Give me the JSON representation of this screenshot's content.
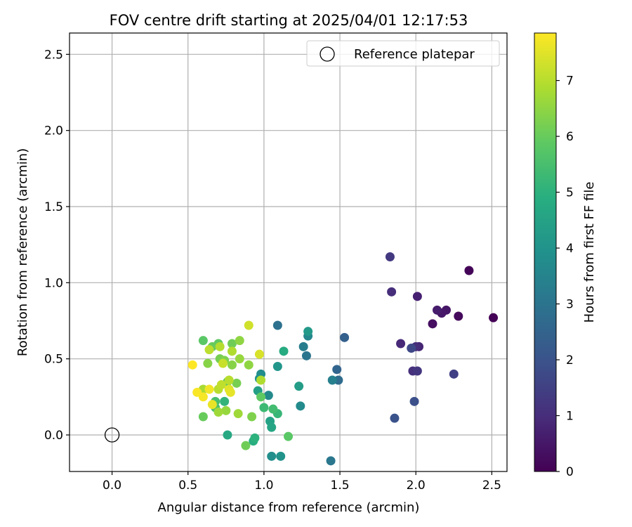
{
  "chart_data": {
    "type": "scatter",
    "title": "FOV centre drift starting at 2025/04/01 12:17:53",
    "xlabel": "Angular distance from reference (arcmin)",
    "ylabel": "Rotation from reference (arcmin)",
    "xlim": [
      -0.28,
      2.6
    ],
    "ylim": [
      -0.24,
      2.64
    ],
    "xticks": [
      0.0,
      0.5,
      1.0,
      1.5,
      2.0,
      2.5
    ],
    "xtick_labels": [
      "0.0",
      "0.5",
      "1.0",
      "1.5",
      "2.0",
      "2.5"
    ],
    "yticks": [
      0.0,
      0.5,
      1.0,
      1.5,
      2.0,
      2.5
    ],
    "ytick_labels": [
      "0.0",
      "0.5",
      "1.0",
      "1.5",
      "2.0",
      "2.5"
    ],
    "grid": true,
    "legend": {
      "placement": "top-right",
      "entries": [
        "Reference platepar"
      ]
    },
    "reference_point": {
      "x": 0.0,
      "y": 0.0,
      "marker": "open-circle"
    },
    "colorbar": {
      "label": "Hours from first FF file",
      "range": [
        0,
        7.85
      ],
      "ticks": [
        0,
        1,
        2,
        3,
        4,
        5,
        6,
        7
      ],
      "tick_labels": [
        "0",
        "1",
        "2",
        "3",
        "4",
        "5",
        "6",
        "7"
      ],
      "colormap": "viridis"
    },
    "points": [
      {
        "x": 2.51,
        "y": 0.77,
        "c": 0.05
      },
      {
        "x": 2.35,
        "y": 1.08,
        "c": 0.1
      },
      {
        "x": 2.28,
        "y": 0.78,
        "c": 0.2
      },
      {
        "x": 2.11,
        "y": 0.73,
        "c": 0.3
      },
      {
        "x": 2.2,
        "y": 0.82,
        "c": 0.45
      },
      {
        "x": 2.17,
        "y": 0.8,
        "c": 0.5
      },
      {
        "x": 2.14,
        "y": 0.82,
        "c": 0.6
      },
      {
        "x": 2.01,
        "y": 0.91,
        "c": 0.7
      },
      {
        "x": 2.02,
        "y": 0.58,
        "c": 0.8
      },
      {
        "x": 1.9,
        "y": 0.6,
        "c": 0.9
      },
      {
        "x": 2.0,
        "y": 0.58,
        "c": 1.0
      },
      {
        "x": 1.98,
        "y": 0.42,
        "c": 1.1
      },
      {
        "x": 2.01,
        "y": 0.42,
        "c": 1.2
      },
      {
        "x": 1.84,
        "y": 0.94,
        "c": 1.0
      },
      {
        "x": 1.83,
        "y": 1.17,
        "c": 1.3
      },
      {
        "x": 2.25,
        "y": 0.4,
        "c": 1.45
      },
      {
        "x": 1.97,
        "y": 0.57,
        "c": 1.7
      },
      {
        "x": 1.99,
        "y": 0.22,
        "c": 1.9
      },
      {
        "x": 1.86,
        "y": 0.11,
        "c": 2.0
      },
      {
        "x": 1.53,
        "y": 0.64,
        "c": 2.4
      },
      {
        "x": 1.48,
        "y": 0.43,
        "c": 2.55
      },
      {
        "x": 1.49,
        "y": 0.36,
        "c": 2.75
      },
      {
        "x": 1.09,
        "y": 0.72,
        "c": 2.9
      },
      {
        "x": 1.28,
        "y": 0.52,
        "c": 3.0
      },
      {
        "x": 1.44,
        "y": -0.17,
        "c": 3.1
      },
      {
        "x": 1.26,
        "y": 0.58,
        "c": 3.3
      },
      {
        "x": 1.45,
        "y": 0.36,
        "c": 3.4
      },
      {
        "x": 1.29,
        "y": 0.65,
        "c": 3.6
      },
      {
        "x": 1.03,
        "y": 0.26,
        "c": 3.7
      },
      {
        "x": 1.24,
        "y": 0.19,
        "c": 3.75
      },
      {
        "x": 0.98,
        "y": 0.4,
        "c": 3.8
      },
      {
        "x": 1.05,
        "y": -0.14,
        "c": 3.85
      },
      {
        "x": 0.97,
        "y": 0.37,
        "c": 3.9
      },
      {
        "x": 1.11,
        "y": -0.14,
        "c": 4.0
      },
      {
        "x": 1.09,
        "y": 0.45,
        "c": 4.1
      },
      {
        "x": 1.29,
        "y": 0.68,
        "c": 4.2
      },
      {
        "x": 1.23,
        "y": 0.32,
        "c": 4.3
      },
      {
        "x": 0.96,
        "y": 0.29,
        "c": 4.4
      },
      {
        "x": 1.04,
        "y": 0.09,
        "c": 4.5
      },
      {
        "x": 1.05,
        "y": 0.05,
        "c": 4.6
      },
      {
        "x": 0.76,
        "y": 0.0,
        "c": 4.7
      },
      {
        "x": 1.13,
        "y": 0.55,
        "c": 4.8
      },
      {
        "x": 0.93,
        "y": -0.04,
        "c": 4.9
      },
      {
        "x": 0.94,
        "y": -0.02,
        "c": 5.0
      },
      {
        "x": 0.74,
        "y": 0.22,
        "c": 5.1
      },
      {
        "x": 1.09,
        "y": 0.14,
        "c": 5.2
      },
      {
        "x": 1.0,
        "y": 0.18,
        "c": 5.3
      },
      {
        "x": 1.06,
        "y": 0.17,
        "c": 5.4
      },
      {
        "x": 0.68,
        "y": 0.22,
        "c": 5.5
      },
      {
        "x": 0.68,
        "y": 0.18,
        "c": 5.6
      },
      {
        "x": 0.76,
        "y": 0.35,
        "c": 5.7
      },
      {
        "x": 1.16,
        "y": -0.01,
        "c": 5.8
      },
      {
        "x": 0.98,
        "y": 0.25,
        "c": 5.9
      },
      {
        "x": 0.6,
        "y": 0.62,
        "c": 5.8
      },
      {
        "x": 0.7,
        "y": 0.6,
        "c": 5.9
      },
      {
        "x": 0.66,
        "y": 0.58,
        "c": 6.0
      },
      {
        "x": 0.6,
        "y": 0.12,
        "c": 6.0
      },
      {
        "x": 0.88,
        "y": -0.07,
        "c": 6.1
      },
      {
        "x": 0.79,
        "y": 0.6,
        "c": 6.1
      },
      {
        "x": 0.82,
        "y": 0.34,
        "c": 6.2
      },
      {
        "x": 0.71,
        "y": 0.5,
        "c": 6.2
      },
      {
        "x": 0.92,
        "y": 0.12,
        "c": 6.3
      },
      {
        "x": 0.74,
        "y": 0.49,
        "c": 6.3
      },
      {
        "x": 0.63,
        "y": 0.47,
        "c": 6.4
      },
      {
        "x": 0.79,
        "y": 0.46,
        "c": 6.4
      },
      {
        "x": 0.9,
        "y": 0.46,
        "c": 6.5
      },
      {
        "x": 0.84,
        "y": 0.62,
        "c": 6.5
      },
      {
        "x": 0.84,
        "y": 0.5,
        "c": 6.6
      },
      {
        "x": 0.75,
        "y": 0.16,
        "c": 6.6
      },
      {
        "x": 0.7,
        "y": 0.15,
        "c": 6.7
      },
      {
        "x": 0.83,
        "y": 0.14,
        "c": 6.7
      },
      {
        "x": 0.6,
        "y": 0.3,
        "c": 6.8
      },
      {
        "x": 0.98,
        "y": 0.36,
        "c": 6.9
      },
      {
        "x": 0.79,
        "y": 0.55,
        "c": 6.9
      },
      {
        "x": 0.71,
        "y": 0.58,
        "c": 6.95
      },
      {
        "x": 0.77,
        "y": 0.36,
        "c": 7.0
      },
      {
        "x": 0.7,
        "y": 0.3,
        "c": 7.0
      },
      {
        "x": 0.64,
        "y": 0.56,
        "c": 7.05
      },
      {
        "x": 0.72,
        "y": 0.33,
        "c": 7.1
      },
      {
        "x": 0.73,
        "y": 0.47,
        "c": 7.2
      },
      {
        "x": 0.9,
        "y": 0.72,
        "c": 7.3
      },
      {
        "x": 0.97,
        "y": 0.53,
        "c": 7.4
      },
      {
        "x": 0.77,
        "y": 0.3,
        "c": 7.5
      },
      {
        "x": 0.78,
        "y": 0.28,
        "c": 7.55
      },
      {
        "x": 0.66,
        "y": 0.2,
        "c": 7.6
      },
      {
        "x": 0.64,
        "y": 0.3,
        "c": 7.7
      },
      {
        "x": 0.6,
        "y": 0.25,
        "c": 7.75
      },
      {
        "x": 0.56,
        "y": 0.28,
        "c": 7.8
      },
      {
        "x": 0.53,
        "y": 0.46,
        "c": 7.85
      }
    ]
  }
}
